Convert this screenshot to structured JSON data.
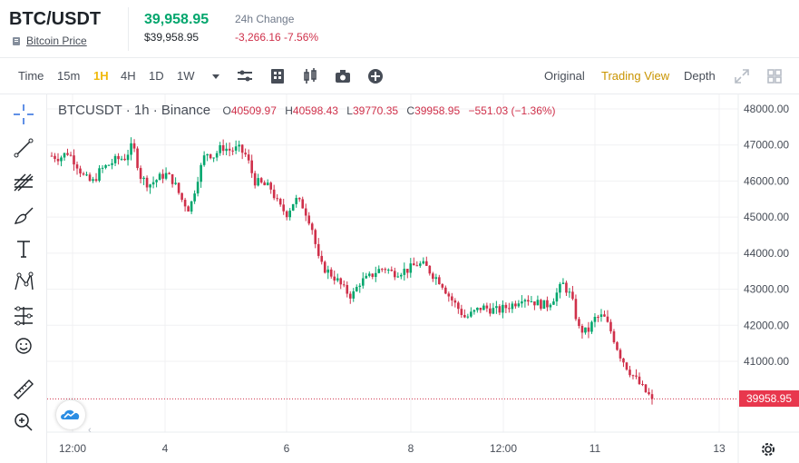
{
  "header": {
    "symbol": "BTC/USDT",
    "sub_link": "Bitcoin Price",
    "price_main": "39,958.95",
    "price_sub": "$39,958.95",
    "change_label": "24h Change",
    "change_value": "-3,266.16 -7.56%"
  },
  "toolbar": {
    "timeframes": [
      "Time",
      "15m",
      "1H",
      "4H",
      "1D",
      "1W"
    ],
    "active_timeframe": "1H",
    "views": [
      "Original",
      "Trading View",
      "Depth"
    ],
    "active_view": "Trading View",
    "icons": [
      "dropdown-caret-icon",
      "indicator-settings-icon",
      "studies-icon",
      "candle-type-icon",
      "camera-icon",
      "add-icon",
      "fullscreen-icon",
      "layout-grid-icon"
    ]
  },
  "tools": [
    "crosshair-icon",
    "trend-line-icon",
    "fib-tool-icon",
    "brush-icon",
    "text-icon",
    "pattern-icon",
    "measure-lines-icon",
    "emoji-icon",
    "ruler-icon",
    "zoom-in-icon"
  ],
  "legend": {
    "symbol": "BTCUSDT · 1h · Binance",
    "open_key": "O",
    "open": "40509.97",
    "high_key": "H",
    "high": "40598.43",
    "low_key": "L",
    "low": "39770.35",
    "close_key": "C",
    "close": "39958.95",
    "change": "−551.03 (−1.36%)"
  },
  "current_price_tag": "39958.95",
  "colors": {
    "up": "#03a66d",
    "down": "#cf304a",
    "accent": "#f0b90b",
    "price_tag": "#e8374d"
  },
  "chart_data": {
    "type": "candlestick",
    "y_axis_ticks": [
      "48000.00",
      "47000.00",
      "46000.00",
      "45000.00",
      "44000.00",
      "43000.00",
      "42000.00",
      "41000.00"
    ],
    "x_axis_ticks": [
      "12:00",
      "4",
      "6",
      "8",
      "12:00",
      "11",
      "13"
    ],
    "ylim": [
      39600,
      48200
    ],
    "grid": true,
    "current_price": 39958.95,
    "close_path": [
      46700,
      46650,
      46800,
      46500,
      46100,
      45950,
      46300,
      46450,
      46600,
      46650,
      47000,
      46100,
      45900,
      46050,
      46200,
      46000,
      45500,
      45200,
      46100,
      46800,
      46700,
      46950,
      46850,
      46900,
      46700,
      46000,
      45900,
      45800,
      45300,
      45100,
      45500,
      45300,
      44800,
      43700,
      43500,
      43300,
      43000,
      42800,
      43200,
      43300,
      43500,
      43600,
      43450,
      43500,
      43550,
      43700,
      43650,
      43400,
      43200,
      42800,
      42500,
      42200,
      42350,
      42500,
      42450,
      42400,
      42500,
      42600,
      42800,
      42700,
      42600,
      42550,
      42800,
      43150,
      42800,
      41900,
      41800,
      42200,
      42250,
      41800,
      41200,
      40800,
      40500,
      40200,
      39959
    ]
  }
}
